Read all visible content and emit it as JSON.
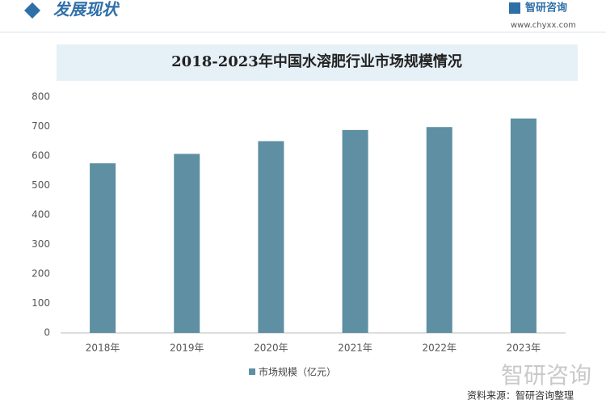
{
  "header": {
    "title": "发展现状",
    "logo": "智研咨询",
    "url": "www.chyxx.com"
  },
  "chart_data": {
    "type": "bar",
    "title": "2018-2023年中国水溶肥行业市场规模情况",
    "categories": [
      "2018年",
      "2019年",
      "2020年",
      "2021年",
      "2022年",
      "2023年"
    ],
    "series": [
      {
        "name": "市场规模（亿元）",
        "color": "#5e8fa3",
        "values": [
          575,
          607,
          650,
          688,
          698,
          727
        ]
      }
    ],
    "ylim": [
      0,
      800
    ],
    "yticks": [
      0,
      100,
      200,
      300,
      400,
      500,
      600,
      700,
      800
    ],
    "grid": false,
    "legend": "bottom"
  },
  "footer": {
    "source": "资料来源：智研咨询整理"
  }
}
